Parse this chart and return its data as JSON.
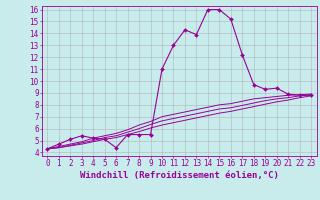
{
  "xlabel": "Windchill (Refroidissement éolien,°C)",
  "background_color": "#c8ecec",
  "line_color": "#990099",
  "xlim": [
    -0.5,
    23.5
  ],
  "ylim": [
    3.7,
    16.3
  ],
  "xticks": [
    0,
    1,
    2,
    3,
    4,
    5,
    6,
    7,
    8,
    9,
    10,
    11,
    12,
    13,
    14,
    15,
    16,
    17,
    18,
    19,
    20,
    21,
    22,
    23
  ],
  "yticks": [
    4,
    5,
    6,
    7,
    8,
    9,
    10,
    11,
    12,
    13,
    14,
    15,
    16
  ],
  "line1_x": [
    0,
    1,
    2,
    3,
    4,
    5,
    6,
    7,
    8,
    9,
    10,
    11,
    12,
    13,
    14,
    15,
    16,
    17,
    18,
    19,
    20,
    21,
    22,
    23
  ],
  "line1_y": [
    4.3,
    4.7,
    5.1,
    5.4,
    5.2,
    5.1,
    4.4,
    5.5,
    5.5,
    5.5,
    11.0,
    13.0,
    14.3,
    13.9,
    16.0,
    16.0,
    15.2,
    12.2,
    9.7,
    9.3,
    9.4,
    8.9,
    8.8,
    8.8
  ],
  "line2_x": [
    0,
    1,
    2,
    3,
    4,
    5,
    6,
    7,
    8,
    9,
    10,
    11,
    12,
    13,
    14,
    15,
    16,
    17,
    18,
    19,
    20,
    21,
    22,
    23
  ],
  "line2_y": [
    4.3,
    4.5,
    4.7,
    4.9,
    5.2,
    5.4,
    5.6,
    5.9,
    6.3,
    6.6,
    7.0,
    7.2,
    7.4,
    7.6,
    7.8,
    8.0,
    8.1,
    8.3,
    8.5,
    8.6,
    8.7,
    8.8,
    8.85,
    8.9
  ],
  "line3_x": [
    0,
    1,
    2,
    3,
    4,
    5,
    6,
    7,
    8,
    9,
    10,
    11,
    12,
    13,
    14,
    15,
    16,
    17,
    18,
    19,
    20,
    21,
    22,
    23
  ],
  "line3_y": [
    4.3,
    4.4,
    4.6,
    4.8,
    5.0,
    5.25,
    5.4,
    5.7,
    6.0,
    6.35,
    6.65,
    6.85,
    7.05,
    7.25,
    7.45,
    7.65,
    7.75,
    7.95,
    8.15,
    8.35,
    8.5,
    8.6,
    8.75,
    8.85
  ],
  "line4_x": [
    0,
    1,
    2,
    3,
    4,
    5,
    6,
    7,
    8,
    9,
    10,
    11,
    12,
    13,
    14,
    15,
    16,
    17,
    18,
    19,
    20,
    21,
    22,
    23
  ],
  "line4_y": [
    4.3,
    4.4,
    4.55,
    4.7,
    4.9,
    5.1,
    5.25,
    5.5,
    5.75,
    6.05,
    6.3,
    6.5,
    6.7,
    6.9,
    7.1,
    7.3,
    7.45,
    7.65,
    7.85,
    8.05,
    8.25,
    8.4,
    8.6,
    8.75
  ],
  "grid_color": "#b0b0b0",
  "xlabel_fontsize": 6.5,
  "tick_fontsize": 5.5,
  "markersize": 2.0
}
